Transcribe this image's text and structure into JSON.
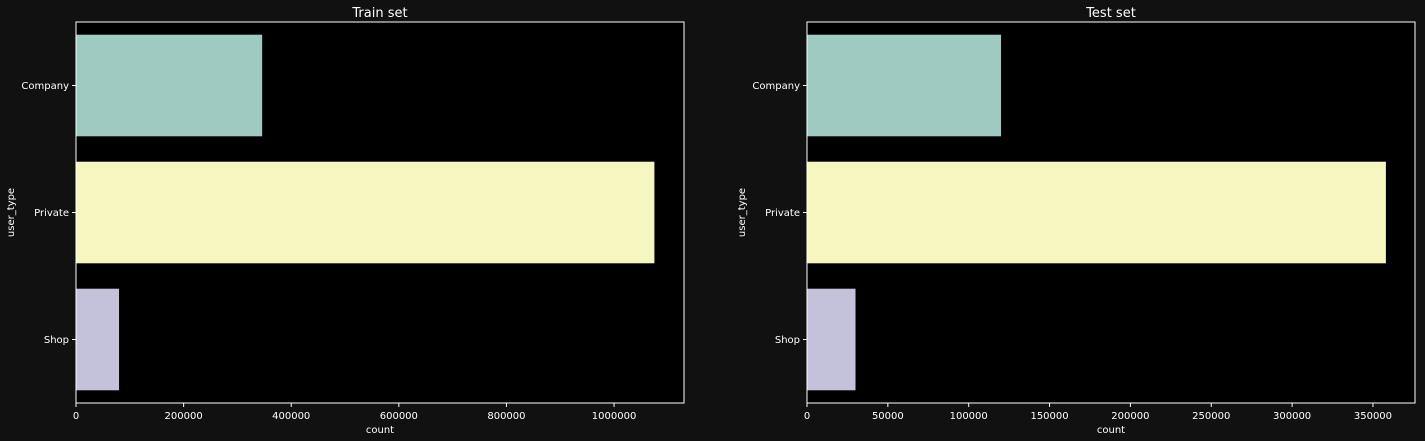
{
  "chart_data": [
    {
      "type": "bar",
      "orientation": "horizontal",
      "title": "Train set",
      "xlabel": "count",
      "ylabel": "user_type",
      "categories": [
        "Company",
        "Private",
        "Shop"
      ],
      "values": [
        346000,
        1075000,
        80000
      ],
      "xlim": [
        0,
        1130000
      ],
      "xticks": [
        0,
        200000,
        400000,
        600000,
        800000,
        1000000
      ],
      "xtick_labels": [
        "0",
        "200000",
        "400000",
        "600000",
        "800000",
        "1000000"
      ],
      "colors": [
        "#9ecac2",
        "#f6f7c0",
        "#c4c2db"
      ],
      "grid": false,
      "plot_background": "#000000"
    },
    {
      "type": "bar",
      "orientation": "horizontal",
      "title": "Test set",
      "xlabel": "count",
      "ylabel": "user_type",
      "categories": [
        "Company",
        "Private",
        "Shop"
      ],
      "values": [
        120000,
        358000,
        30000
      ],
      "xlim": [
        0,
        376000
      ],
      "xticks": [
        0,
        50000,
        100000,
        150000,
        200000,
        250000,
        300000,
        350000
      ],
      "xtick_labels": [
        "0",
        "50000",
        "100000",
        "150000",
        "200000",
        "250000",
        "300000",
        "350000"
      ],
      "colors": [
        "#9ecac2",
        "#f6f7c0",
        "#c4c2db"
      ],
      "grid": false,
      "plot_background": "#000000"
    }
  ]
}
